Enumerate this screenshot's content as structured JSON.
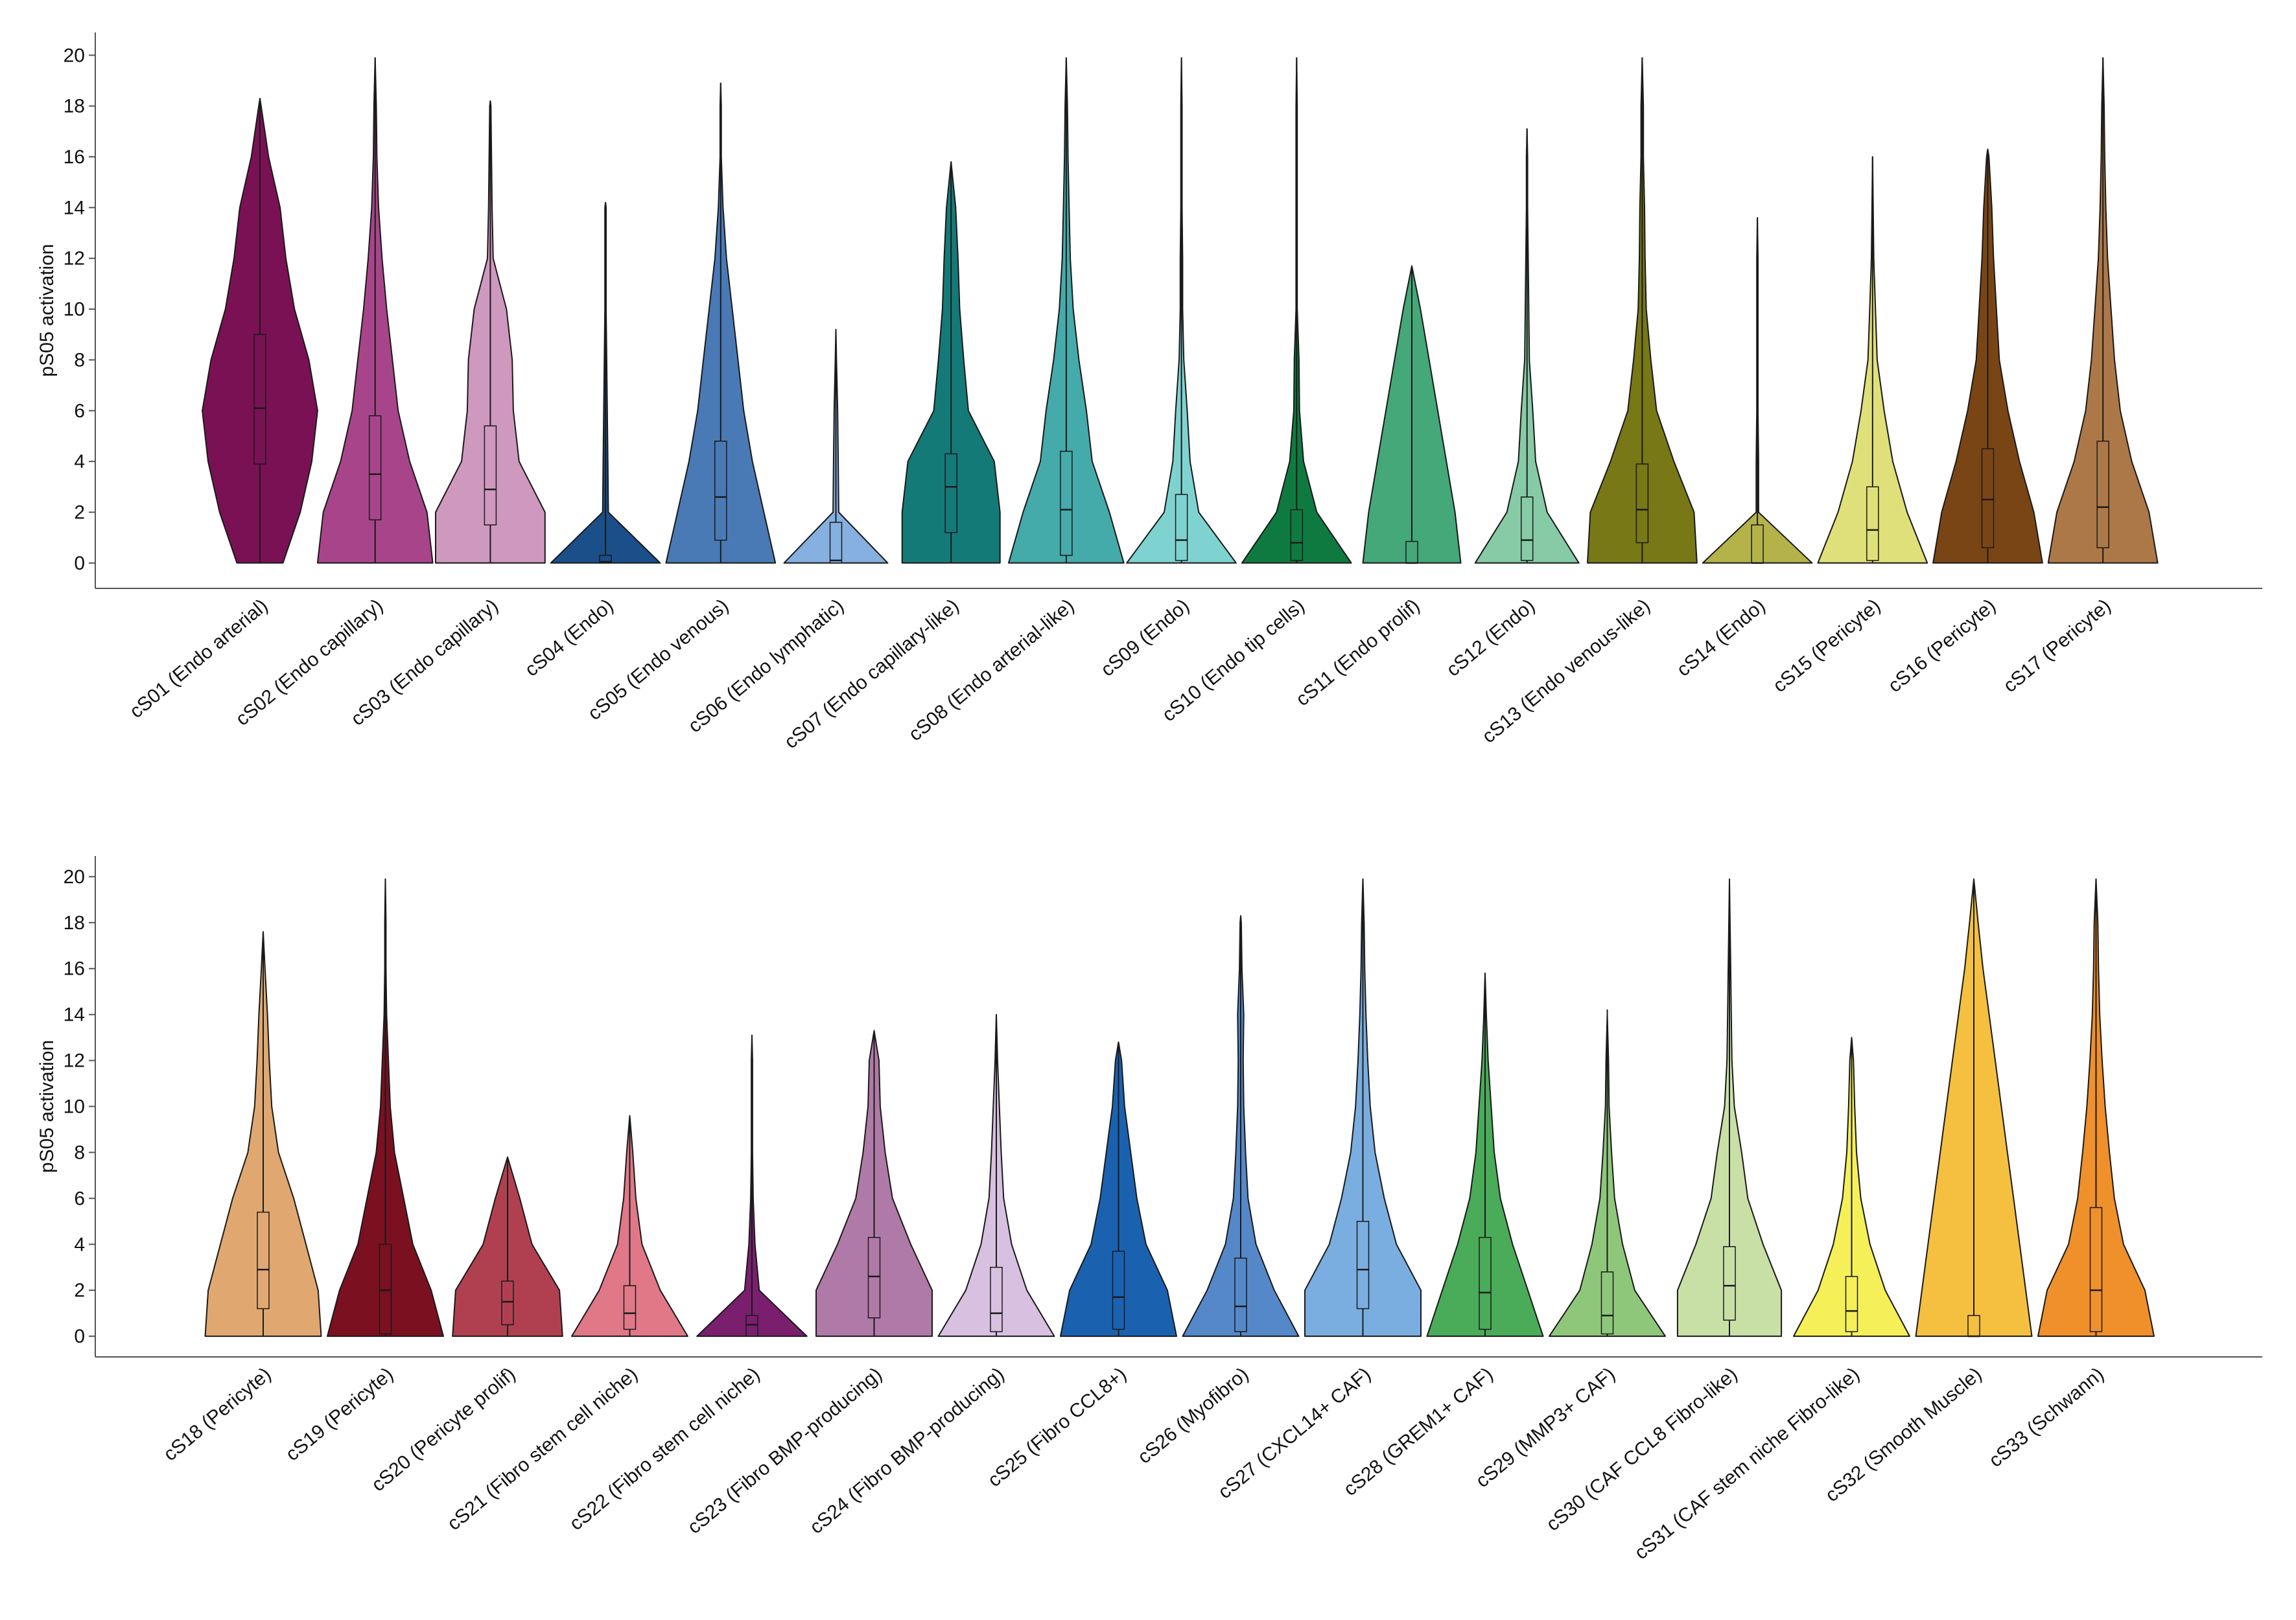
{
  "chart_data": [
    {
      "type": "violin",
      "ylabel": "pS05 activation",
      "ylim": [
        -1,
        20.9
      ],
      "yticks": [
        0,
        2,
        4,
        6,
        8,
        10,
        12,
        14,
        16,
        18,
        20
      ],
      "categories": [
        "cS01 (Endo arterial)",
        "cS02 (Endo capillary)",
        "cS03 (Endo capillary)",
        "cS04 (Endo)",
        "cS05 (Endo venous)",
        "cS06 (Endo lymphatic)",
        "cS07 (Endo capillary-like)",
        "cS08 (Endo arterial-like)",
        "cS09 (Endo)",
        "cS10 (Endo tip cells)",
        "cS11 (Endo prolif)",
        "cS12 (Endo)",
        "cS13 (Endo venous-like)",
        "cS14 (Endo)",
        "cS15 (Pericyte)",
        "cS16 (Pericyte)",
        "cS17 (Pericyte)"
      ],
      "colors": [
        "#7a1155",
        "#a8458a",
        "#cf98bf",
        "#1a4f8a",
        "#4a7ab5",
        "#85b0e0",
        "#147a78",
        "#45aaaa",
        "#7ed3d0",
        "#0f7a40",
        "#44a878",
        "#86cba6",
        "#787816",
        "#b3b34a",
        "#e0e07a",
        "#7a4515",
        "#ad7848"
      ],
      "min": [
        0,
        0,
        0,
        0,
        0,
        0,
        0,
        0,
        0,
        0,
        0,
        0,
        0,
        0,
        0,
        0,
        0
      ],
      "q1": [
        3.9,
        1.7,
        1.5,
        0,
        0.9,
        0,
        1.2,
        0.3,
        0.1,
        0.1,
        0,
        0.1,
        0.8,
        0,
        0.1,
        0.6,
        0.6
      ],
      "median": [
        6.1,
        3.5,
        2.9,
        0.05,
        2.6,
        0.1,
        3.0,
        2.1,
        0.9,
        0.8,
        0,
        0.9,
        2.1,
        0,
        1.3,
        2.5,
        2.2
      ],
      "q3": [
        9.0,
        5.8,
        5.4,
        0.3,
        4.8,
        1.6,
        4.3,
        4.4,
        2.7,
        2.1,
        0.85,
        2.6,
        3.9,
        1.5,
        3.0,
        4.5,
        4.8
      ],
      "max": [
        18.3,
        19.9,
        18.2,
        14.2,
        18.9,
        9.2,
        15.8,
        19.9,
        19.9,
        19.9,
        11.7,
        17.1,
        19.9,
        13.6,
        16.0,
        16.3,
        19.9
      ],
      "density_y": [
        0,
        2,
        4,
        6,
        8,
        10,
        12,
        14,
        16,
        18,
        20
      ],
      "density": [
        [
          0.4,
          0.7,
          0.9,
          1.0,
          0.85,
          0.6,
          0.45,
          0.35,
          0.15,
          0.02,
          0
        ],
        [
          1.0,
          0.9,
          0.6,
          0.4,
          0.3,
          0.2,
          0.12,
          0.06,
          0.03,
          0.02,
          0
        ],
        [
          0.95,
          0.95,
          0.5,
          0.4,
          0.38,
          0.28,
          0.05,
          0.03,
          0.02,
          0.01,
          0
        ],
        [
          0.95,
          0.05,
          0.04,
          0.03,
          0.02,
          0.01,
          0.01,
          0.01,
          0,
          0,
          0
        ],
        [
          0.95,
          0.75,
          0.55,
          0.4,
          0.3,
          0.2,
          0.1,
          0.04,
          0.01,
          0.01,
          0
        ],
        [
          0.9,
          0.05,
          0.04,
          0.03,
          0.01,
          0,
          0,
          0,
          0,
          0,
          0
        ],
        [
          0.85,
          0.85,
          0.75,
          0.3,
          0.22,
          0.15,
          0.12,
          0.08,
          0,
          0,
          0
        ],
        [
          1.0,
          0.75,
          0.45,
          0.35,
          0.22,
          0.12,
          0.07,
          0.05,
          0.03,
          0.02,
          0
        ],
        [
          0.95,
          0.3,
          0.15,
          0.1,
          0.04,
          0.02,
          0.02,
          0.01,
          0.01,
          0.01,
          0
        ],
        [
          0.95,
          0.35,
          0.12,
          0.05,
          0.04,
          0.01,
          0.01,
          0.01,
          0.01,
          0.01,
          0
        ],
        [
          0.85,
          0.75,
          0.6,
          0.45,
          0.3,
          0.15,
          0,
          0,
          0,
          0,
          0
        ],
        [
          0.9,
          0.35,
          0.15,
          0.1,
          0.04,
          0.03,
          0.02,
          0.01,
          0.01,
          0,
          0
        ],
        [
          0.95,
          0.9,
          0.55,
          0.25,
          0.15,
          0.07,
          0.05,
          0.04,
          0.02,
          0.02,
          0
        ],
        [
          0.95,
          0.02,
          0.02,
          0.01,
          0.01,
          0.01,
          0.01,
          0,
          0,
          0,
          0
        ],
        [
          0.95,
          0.6,
          0.35,
          0.2,
          0.08,
          0.05,
          0.02,
          0.01,
          0,
          0,
          0
        ],
        [
          0.95,
          0.8,
          0.55,
          0.35,
          0.2,
          0.15,
          0.1,
          0.07,
          0.02,
          0,
          0
        ],
        [
          0.95,
          0.8,
          0.5,
          0.3,
          0.2,
          0.14,
          0.08,
          0.05,
          0.03,
          0.02,
          0
        ]
      ]
    },
    {
      "type": "violin",
      "ylabel": "pS05 activation",
      "ylim": [
        -0.9,
        20.9
      ],
      "yticks": [
        0,
        2,
        4,
        6,
        8,
        10,
        12,
        14,
        16,
        18,
        20
      ],
      "categories": [
        "cS18 (Pericyte)",
        "cS19 (Pericyte)",
        "cS20 (Pericyte prolif)",
        "cS21 (Fibro stem cell niche)",
        "cS22 (Fibro stem cell niche)",
        "cS23 (Fibro BMP-producing)",
        "cS24 (Fibro BMP-producing)",
        "cS25 (Fibro CCL8+)",
        "cS26 (Myofibro)",
        "cS27 (CXCL14+ CAF)",
        "cS28 (GREM1+ CAF)",
        "cS29 (MMP3+ CAF)",
        "cS30 (CAF CCL8 Fibro-like)",
        "cS31 (CAF stem niche Fibro-like)",
        "cS32 (Smooth Muscle)",
        "cS33 (Schwann)"
      ],
      "colors": [
        "#e0a870",
        "#7a1020",
        "#b04050",
        "#e07888",
        "#7a1e6e",
        "#b07aa8",
        "#d8c0e0",
        "#1a62b0",
        "#5588c8",
        "#7aaee0",
        "#4aab58",
        "#8ec77a",
        "#c8e0a6",
        "#f5f058",
        "#f5c040",
        "#f0902a"
      ],
      "min": [
        0,
        0,
        0,
        0,
        0,
        0,
        0,
        0,
        0,
        0,
        0,
        0,
        0,
        0,
        0,
        0
      ],
      "q1": [
        1.2,
        0.1,
        0.5,
        0.3,
        0,
        0.8,
        0.2,
        0.3,
        0.2,
        1.2,
        0.3,
        0.1,
        0.7,
        0.2,
        0,
        0.2
      ],
      "median": [
        2.9,
        2.0,
        1.5,
        1.0,
        0.5,
        2.6,
        1.0,
        1.7,
        1.3,
        2.9,
        1.9,
        0.9,
        2.2,
        1.1,
        0,
        2.0
      ],
      "q3": [
        5.4,
        4.0,
        2.4,
        2.2,
        0.9,
        4.3,
        3.0,
        3.7,
        3.4,
        5.0,
        4.3,
        2.8,
        3.9,
        2.6,
        0.9,
        5.6
      ],
      "max": [
        17.6,
        19.9,
        7.8,
        9.6,
        13.1,
        13.3,
        14.0,
        12.8,
        18.3,
        19.9,
        15.8,
        14.2,
        19.9,
        13.0,
        19.9,
        19.9
      ],
      "density_y": [
        0,
        2,
        4,
        6,
        8,
        10,
        12,
        14,
        16,
        18,
        20
      ],
      "density": [
        [
          0.95,
          0.9,
          0.7,
          0.5,
          0.25,
          0.14,
          0.1,
          0.07,
          0.03,
          0,
          0
        ],
        [
          0.95,
          0.75,
          0.45,
          0.3,
          0.15,
          0.08,
          0.05,
          0.02,
          0.01,
          0.01,
          0
        ],
        [
          0.9,
          0.85,
          0.4,
          0.2,
          0,
          0,
          0,
          0,
          0,
          0,
          0
        ],
        [
          0.95,
          0.5,
          0.2,
          0.1,
          0.05,
          0,
          0,
          0,
          0,
          0,
          0
        ],
        [
          0.9,
          0.12,
          0.05,
          0.02,
          0.01,
          0.01,
          0.01,
          0,
          0,
          0,
          0
        ],
        [
          0.95,
          0.95,
          0.6,
          0.3,
          0.18,
          0.1,
          0.08,
          0,
          0,
          0,
          0
        ],
        [
          0.95,
          0.5,
          0.25,
          0.12,
          0.08,
          0.05,
          0.02,
          0,
          0,
          0,
          0
        ],
        [
          0.95,
          0.8,
          0.45,
          0.3,
          0.2,
          0.1,
          0.05,
          0,
          0,
          0,
          0
        ],
        [
          0.95,
          0.55,
          0.25,
          0.12,
          0.08,
          0.05,
          0.04,
          0.05,
          0.02,
          0.01,
          0
        ],
        [
          0.95,
          0.95,
          0.55,
          0.35,
          0.2,
          0.12,
          0.08,
          0.05,
          0.03,
          0.02,
          0
        ],
        [
          0.95,
          0.7,
          0.45,
          0.25,
          0.15,
          0.1,
          0.05,
          0.02,
          0,
          0,
          0
        ],
        [
          0.95,
          0.45,
          0.25,
          0.12,
          0.07,
          0.03,
          0.02,
          0,
          0,
          0,
          0
        ],
        [
          0.85,
          0.85,
          0.55,
          0.3,
          0.2,
          0.08,
          0.04,
          0.03,
          0.02,
          0.01,
          0
        ],
        [
          0.95,
          0.55,
          0.3,
          0.15,
          0.08,
          0.05,
          0.03,
          0,
          0,
          0,
          0
        ],
        [
          0.95,
          0.85,
          0.75,
          0.65,
          0.55,
          0.45,
          0.35,
          0.25,
          0.15,
          0.07,
          0
        ],
        [
          0.95,
          0.8,
          0.45,
          0.3,
          0.22,
          0.15,
          0.1,
          0.06,
          0.04,
          0.03,
          0
        ]
      ]
    }
  ]
}
